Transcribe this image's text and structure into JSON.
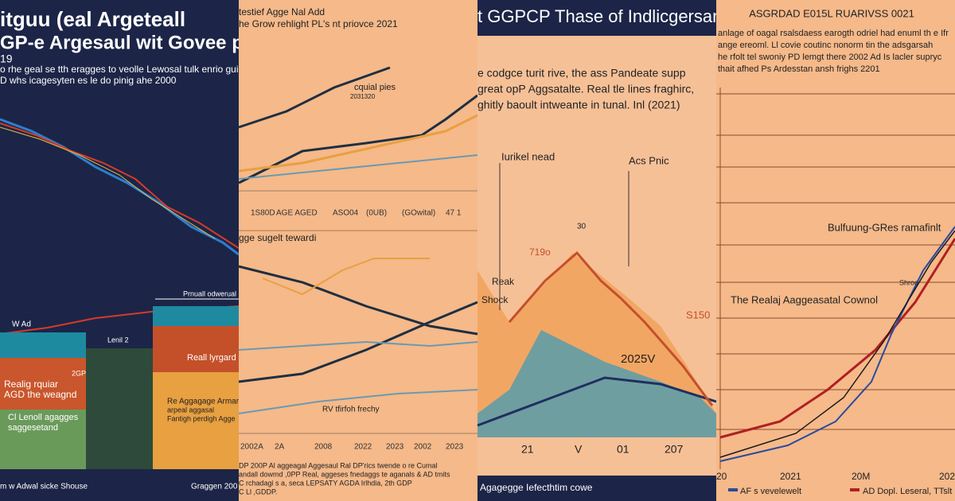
{
  "panels": [
    {
      "title_lines": [
        "itguu (eal Argeteall",
        "GP-e Argesaul wit Govee putook",
        "19"
      ],
      "body_lines": [
        "o rhe geal se tth eragges to veolle Lewosal tulk enrio guie a",
        "D whs icagesyten es le do pinig ahe 2000"
      ],
      "labels": [
        "Prnuall odwerual",
        "W Ad",
        "Lenil 2",
        "2GP",
        "Realig rquiar",
        "AGD the weagnd",
        "Cl Lenoll agagges",
        "saggesetand",
        "Reall lyrgard",
        "Re Aggagage Armam",
        "arpeal aggasal",
        "Fantigh perdigh Agge"
      ],
      "footer": [
        "m w Adwal sicke Shouse",
        "Graggen 200"
      ]
    },
    {
      "title_lines": [
        "testief Agge Nal Add",
        "he Grow rehlight PL's nt priovce 2021"
      ],
      "labels": [
        "cquial pies",
        "2031320",
        "gge sugelt tewardi",
        "RV tfirfoh frechy"
      ],
      "x_ticks_top": [
        "1S80D",
        "AGE AGED",
        "ASO04",
        "(0UB)",
        "(GOwital)",
        "47 1"
      ],
      "x_ticks_bottom": [
        "2002A",
        "2A",
        "2008",
        "2022",
        "2023",
        "2002",
        "2023"
      ],
      "footer": [
        "DP 200P Al aggeagal Aggesaul Ral DP'rics twende o re Cumal",
        "andall dowmd ,0PP Real, aggeses fnedaggs te aganals & AD tmits",
        "C rchadagi s a, seca LEPSATY AGDA Irlhdia, 2th GDP",
        "C Ll ,GDDP."
      ]
    },
    {
      "title": "t GGPCP Thase of Indlicgersand",
      "body_lines": [
        "e codgce turit rive, the ass Pandeate supp",
        "great opP Aggsatalte. Real tle lines fraghirc,",
        "ghitly baoult intweante in tunal. Inl (2021)"
      ],
      "labels": [
        "Iurikel nead",
        "Acs Pnic",
        "30",
        "719o",
        "Reak",
        "Shock",
        "S150",
        "2025V"
      ],
      "x_ticks": [
        "21",
        "V",
        "01",
        "207"
      ],
      "footer": "Agagegge Iefecthtim cowe"
    },
    {
      "title": "ASGRDAD E015L RUARIVSS 0021",
      "body_lines": [
        "anlage of oagal rsalsdaess earogth odriel had enuml th e Ifr",
        "ange ereoml. Ll covie coutinc nonorm tin the adsgarsah",
        "he rfolt tel swoniy PD lemgt there 2002 Ad Is lacler supryc",
        "thait afhed Ps Ardesstan ansh frighs 2201"
      ],
      "labels": [
        "Bulfuung-GRes ramafinlt",
        "The Realaj Aaggeasatal Cownol",
        "Shroo"
      ],
      "x_ticks": [
        "20",
        "2021",
        "20M",
        "202"
      ],
      "legend": [
        "AF s vevelewelt",
        "AD Dopl. Leseral, TTslt"
      ]
    }
  ]
}
